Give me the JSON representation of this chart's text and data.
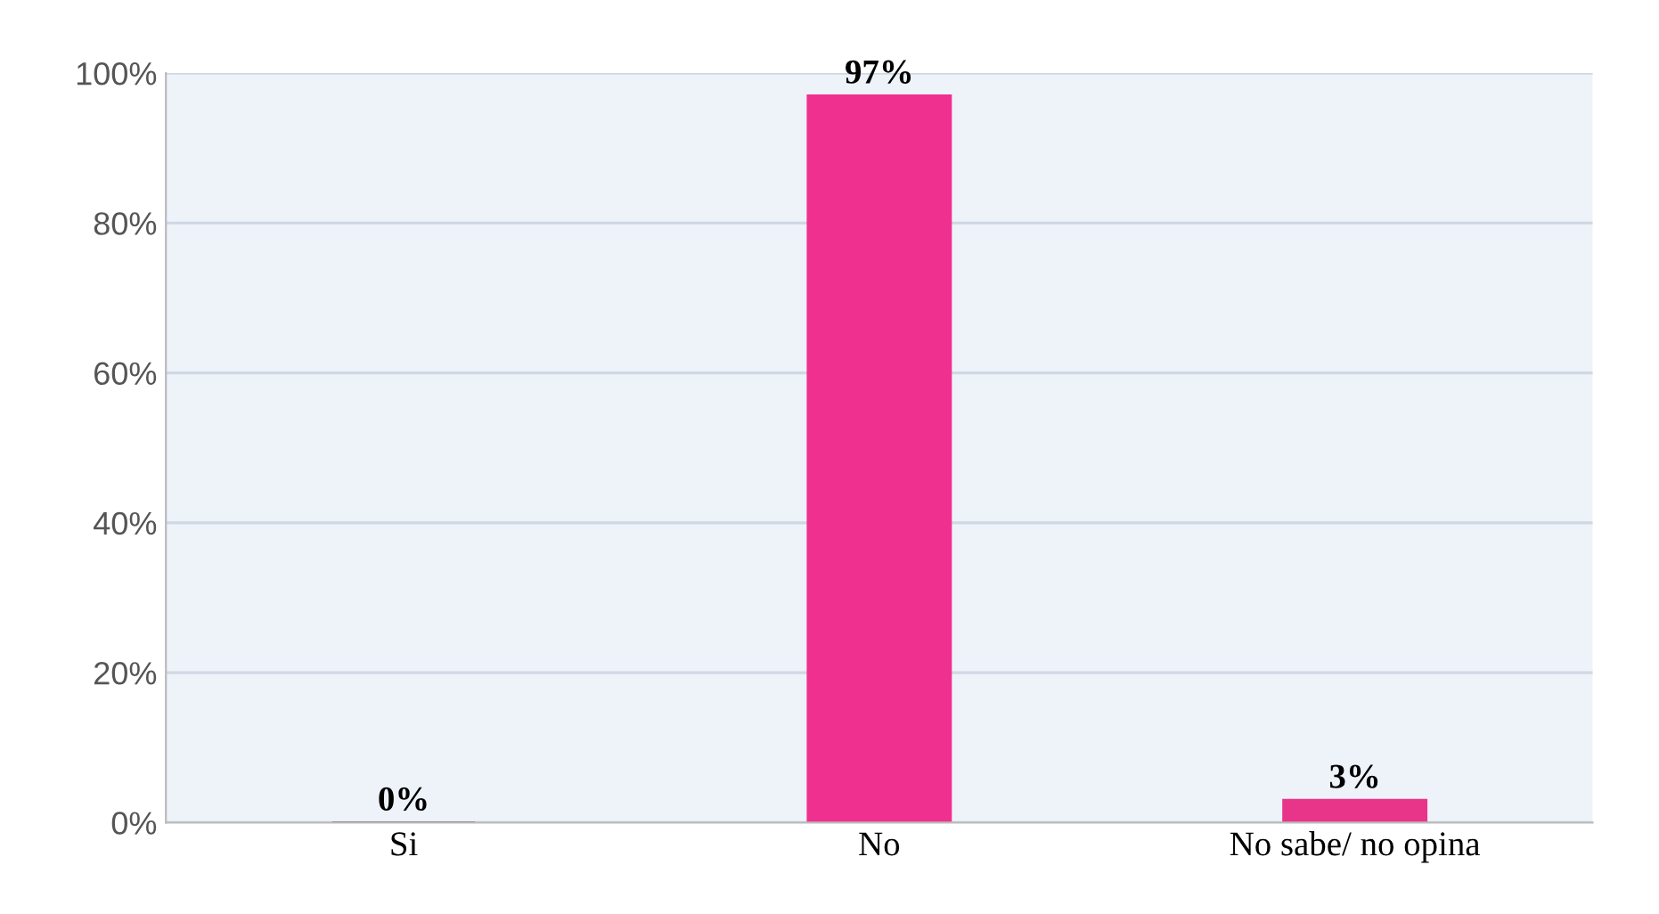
{
  "chart_data": {
    "type": "bar",
    "categories": [
      "Si",
      "No",
      "No sabe/ no opina"
    ],
    "values": [
      0,
      97,
      3
    ],
    "colors": [
      "#4a0a2c",
      "#f0308f",
      "#e8358a"
    ],
    "value_labels": [
      "0%",
      "97%",
      "3%"
    ],
    "ylim": [
      0,
      100
    ],
    "yticks": [
      {
        "value": 0,
        "label": "0%"
      },
      {
        "value": 20,
        "label": "20%"
      },
      {
        "value": 40,
        "label": "40%"
      },
      {
        "value": 60,
        "label": "60%"
      },
      {
        "value": 80,
        "label": "80%"
      },
      {
        "value": 100,
        "label": "100%"
      }
    ],
    "grid": "y"
  }
}
